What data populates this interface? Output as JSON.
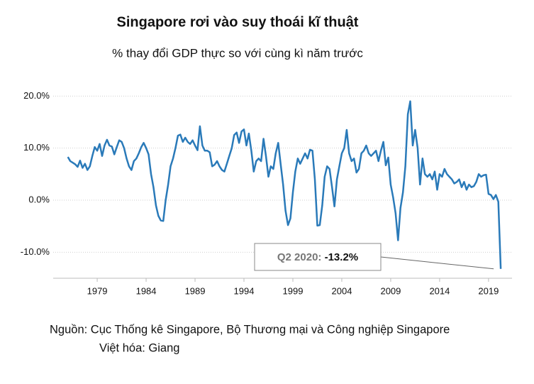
{
  "chart_data": {
    "type": "line",
    "title": "Singapore rơi vào suy thoái kĩ thuật",
    "subtitle": "% thay đổi GDP thực so với cùng kì năm trước",
    "source": "Nguồn: Cục Thống kê Singapore, Bộ Thương mại và Công nghiệp Singapore",
    "credit": "Việt hóa: Giang",
    "color": "#2a7ab9",
    "grid": true,
    "xlim": [
      1974.5,
      2021.4
    ],
    "xticks": [
      1979,
      1984,
      1989,
      1994,
      1999,
      2004,
      2009,
      2014,
      2019
    ],
    "ylim": [
      -15,
      21
    ],
    "yticks": [
      {
        "value": 20,
        "label": "20.0%"
      },
      {
        "value": 10,
        "label": "10.0%"
      },
      {
        "value": 0,
        "label": "0.0%"
      },
      {
        "value": -10,
        "label": "-10.0%"
      }
    ],
    "x": [
      1976,
      1976.25,
      1976.5,
      1976.75,
      1977,
      1977.25,
      1977.5,
      1977.75,
      1978,
      1978.25,
      1978.5,
      1978.75,
      1979,
      1979.25,
      1979.5,
      1979.75,
      1980,
      1980.25,
      1980.5,
      1980.75,
      1981,
      1981.25,
      1981.5,
      1981.75,
      1982,
      1982.25,
      1982.5,
      1982.75,
      1983,
      1983.25,
      1983.5,
      1983.75,
      1984,
      1984.25,
      1984.5,
      1984.75,
      1985,
      1985.25,
      1985.5,
      1985.75,
      1986,
      1986.25,
      1986.5,
      1986.75,
      1987,
      1987.25,
      1987.5,
      1987.75,
      1988,
      1988.25,
      1988.5,
      1988.75,
      1989,
      1989.25,
      1989.5,
      1989.75,
      1990,
      1990.25,
      1990.5,
      1990.75,
      1991,
      1991.25,
      1991.5,
      1991.75,
      1992,
      1992.25,
      1992.5,
      1992.75,
      1993,
      1993.25,
      1993.5,
      1993.75,
      1994,
      1994.25,
      1994.5,
      1994.75,
      1995,
      1995.25,
      1995.5,
      1995.75,
      1996,
      1996.25,
      1996.5,
      1996.75,
      1997,
      1997.25,
      1997.5,
      1997.75,
      1998,
      1998.25,
      1998.5,
      1998.75,
      1999,
      1999.25,
      1999.5,
      1999.75,
      2000,
      2000.25,
      2000.5,
      2000.75,
      2001,
      2001.25,
      2001.5,
      2001.75,
      2002,
      2002.25,
      2002.5,
      2002.75,
      2003,
      2003.25,
      2003.5,
      2003.75,
      2004,
      2004.25,
      2004.5,
      2004.75,
      2005,
      2005.25,
      2005.5,
      2005.75,
      2006,
      2006.25,
      2006.5,
      2006.75,
      2007,
      2007.25,
      2007.5,
      2007.75,
      2008,
      2008.25,
      2008.5,
      2008.75,
      2009,
      2009.25,
      2009.5,
      2009.75,
      2010,
      2010.25,
      2010.5,
      2010.75,
      2011,
      2011.25,
      2011.5,
      2011.75,
      2012,
      2012.25,
      2012.5,
      2012.75,
      2013,
      2013.25,
      2013.5,
      2013.75,
      2014,
      2014.25,
      2014.5,
      2014.75,
      2015,
      2015.25,
      2015.5,
      2015.75,
      2016,
      2016.25,
      2016.5,
      2016.75,
      2017,
      2017.25,
      2017.5,
      2017.75,
      2018,
      2018.25,
      2018.5,
      2018.75,
      2019,
      2019.25,
      2019.5,
      2019.75,
      2020,
      2020.25
    ],
    "values": [
      8.3,
      7.5,
      7.2,
      6.9,
      6.4,
      7.6,
      6.2,
      7.0,
      5.8,
      6.5,
      8.5,
      10.2,
      9.5,
      10.8,
      8.5,
      10.5,
      11.6,
      10.5,
      10.3,
      8.8,
      10.2,
      11.5,
      11.2,
      10.0,
      8.0,
      6.5,
      5.8,
      7.5,
      8.0,
      9.0,
      10.2,
      11.0,
      10.0,
      8.8,
      5.0,
      2.5,
      -1.0,
      -3.0,
      -3.9,
      -4.0,
      0.0,
      3.0,
      6.5,
      8.0,
      10.0,
      12.4,
      12.6,
      11.2,
      12.0,
      11.2,
      10.8,
      11.5,
      10.5,
      9.6,
      14.2,
      10.5,
      9.5,
      9.5,
      9.2,
      6.5,
      6.8,
      7.5,
      6.5,
      5.8,
      5.5,
      7.0,
      8.5,
      10.0,
      12.5,
      13.0,
      11.0,
      13.2,
      13.6,
      10.5,
      12.8,
      9.5,
      5.5,
      7.5,
      8.0,
      7.5,
      11.8,
      8.5,
      4.5,
      6.5,
      6.0,
      9.0,
      11.0,
      7.0,
      3.0,
      -2.0,
      -4.8,
      -3.5,
      1.5,
      5.5,
      8.0,
      7.0,
      8.0,
      9.0,
      8.0,
      9.7,
      9.5,
      4.0,
      -4.9,
      -4.8,
      -1.0,
      4.5,
      6.5,
      6.0,
      2.5,
      -1.2,
      4.0,
      6.5,
      9.0,
      10.0,
      13.5,
      9.0,
      7.5,
      8.0,
      5.3,
      6.0,
      9.0,
      9.5,
      10.5,
      9.0,
      8.5,
      9.0,
      9.5,
      7.5,
      9.5,
      11.2,
      6.7,
      8.2,
      3.0,
      0.5,
      -2.5,
      -7.7,
      -1.5,
      1.5,
      6.5,
      16.5,
      19.0,
      10.5,
      13.5,
      10.0,
      3.0,
      8.0,
      5.0,
      4.5,
      5.0,
      4.0,
      5.5,
      2.0,
      5.0,
      4.5,
      6.0,
      5.0,
      4.5,
      4.0,
      3.2,
      3.5,
      4.0,
      2.5,
      3.5,
      2.0,
      3.0,
      2.5,
      2.7,
      3.5,
      5.0,
      4.5,
      4.8,
      4.9,
      1.2,
      1.0,
      0.2,
      1.0,
      -0.3,
      -13.2
    ],
    "annotation": {
      "label": "Q2 2020:",
      "value": -13.2,
      "value_label": "-13.2%"
    }
  }
}
